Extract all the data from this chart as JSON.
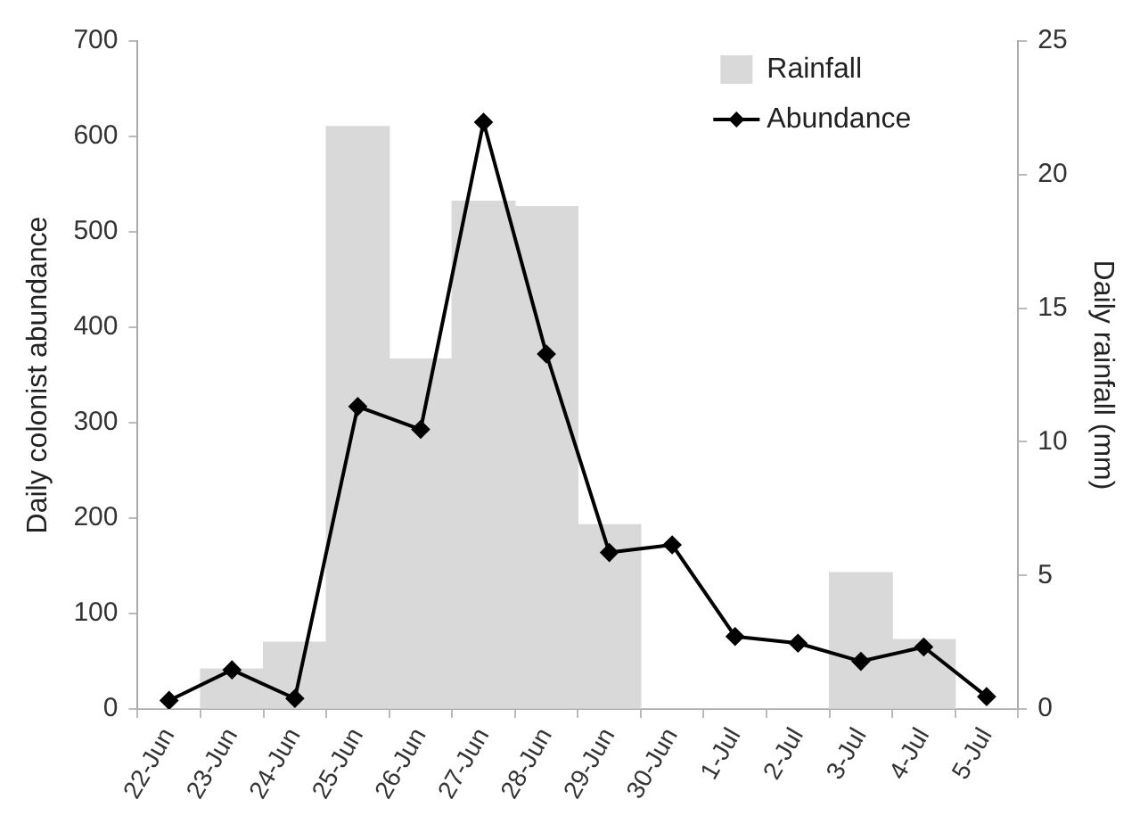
{
  "chart_data": {
    "type": "bar",
    "ylabel": "Daily colonist abundance",
    "y2label": "Daily rainfall (mm)",
    "categories": [
      "22-Jun",
      "23-Jun",
      "24-Jun",
      "25-Jun",
      "26-Jun",
      "27-Jun",
      "28-Jun",
      "29-Jun",
      "30-Jun",
      "1-Jul",
      "2-Jul",
      "3-Jul",
      "4-Jul",
      "5-Jul"
    ],
    "series": [
      {
        "name": "Rainfall",
        "axis": "y2",
        "color": "#d9d9d9",
        "values": [
          0,
          1.5,
          2.5,
          21.8,
          13.1,
          19.0,
          18.8,
          6.9,
          0,
          0,
          0,
          5.1,
          2.6,
          0
        ]
      },
      {
        "name": "Abundance",
        "type": "line",
        "color": "#000000",
        "values": [
          9,
          41,
          11,
          317,
          293,
          615,
          372,
          164,
          172,
          76,
          69,
          50,
          65,
          13
        ]
      }
    ],
    "ylim": [
      0,
      700
    ],
    "yticks": [
      0,
      100,
      200,
      300,
      400,
      500,
      600,
      700
    ],
    "y2lim": [
      0,
      25
    ],
    "y2ticks": [
      0,
      5,
      10,
      15,
      20,
      25
    ],
    "grid": false,
    "legend": "top right",
    "marker": "diamond",
    "line_style": "solid"
  }
}
